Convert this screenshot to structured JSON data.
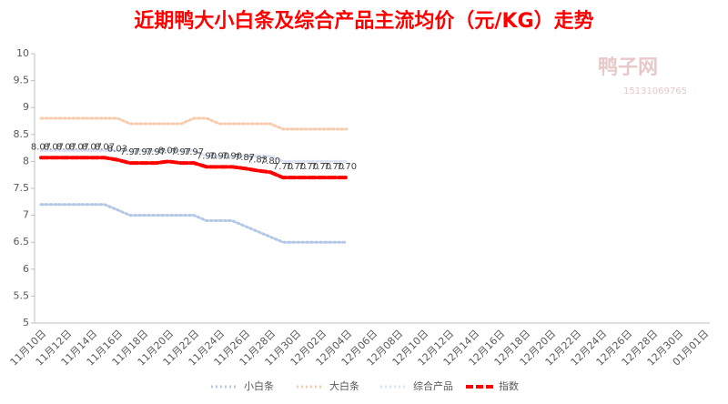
{
  "chart_data": {
    "type": "line",
    "title": "近期鸭大小白条及综合产品主流均价（元/KG）走势",
    "watermark": "鸭子网",
    "watermark_phone": "15131069765",
    "categories": [
      "11月10日",
      null,
      "11月12日",
      null,
      "11月14日",
      null,
      "11月16日",
      null,
      "11月18日",
      null,
      "11月20日",
      null,
      "11月22日",
      null,
      "11月24日",
      null,
      "11月26日",
      null,
      "11月28日",
      null,
      "11月30日",
      null,
      "12月02日",
      null,
      "12月04日",
      null,
      "12月06日",
      null,
      "12月08日",
      null,
      "12月10日",
      null,
      "12月12日",
      null,
      "12月14日",
      null,
      "12月16日",
      null,
      "12月18日",
      null,
      "12月20日",
      null,
      "12月22日",
      null,
      "12月24日",
      null,
      "12月26日",
      null,
      "12月28日",
      null,
      "12月30日",
      null,
      "01月01日"
    ],
    "series": [
      {
        "name": "小白条",
        "color": "#b4c7e7",
        "style": "dotted",
        "values": [
          7.2,
          7.2,
          7.2,
          7.2,
          7.2,
          7.2,
          7.1,
          7.0,
          7.0,
          7.0,
          7.0,
          7.0,
          7.0,
          6.9,
          6.9,
          6.9,
          6.8,
          6.7,
          6.6,
          6.5,
          6.5,
          6.5,
          6.5,
          6.5,
          6.5,
          null,
          null,
          null,
          null,
          null,
          null,
          null,
          null,
          null,
          null,
          null,
          null,
          null,
          null,
          null,
          null,
          null,
          null,
          null,
          null,
          null,
          null,
          null,
          null,
          null,
          null,
          null,
          null
        ]
      },
      {
        "name": "大白条",
        "color": "#f8cbad",
        "style": "dotted",
        "values": [
          8.8,
          8.8,
          8.8,
          8.8,
          8.8,
          8.8,
          8.8,
          8.7,
          8.7,
          8.7,
          8.7,
          8.7,
          8.8,
          8.8,
          8.7,
          8.7,
          8.7,
          8.7,
          8.7,
          8.6,
          8.6,
          8.6,
          8.6,
          8.6,
          8.6,
          null,
          null,
          null,
          null,
          null,
          null,
          null,
          null,
          null,
          null,
          null,
          null,
          null,
          null,
          null,
          null,
          null,
          null,
          null,
          null,
          null,
          null,
          null,
          null,
          null,
          null,
          null,
          null
        ]
      },
      {
        "name": "综合产品",
        "color": "#dae3f3",
        "style": "dotted",
        "values": [
          8.2,
          8.2,
          8.2,
          8.2,
          8.2,
          8.2,
          8.2,
          8.2,
          8.2,
          8.2,
          8.2,
          8.2,
          8.2,
          8.1,
          8.1,
          8.1,
          8.1,
          8.1,
          8.1,
          8.0,
          8.0,
          8.0,
          8.0,
          8.0,
          8.0,
          null,
          null,
          null,
          null,
          null,
          null,
          null,
          null,
          null,
          null,
          null,
          null,
          null,
          null,
          null,
          null,
          null,
          null,
          null,
          null,
          null,
          null,
          null,
          null,
          null,
          null,
          null,
          null
        ]
      },
      {
        "name": "指数",
        "color": "#ff0000",
        "style": "dashed",
        "values": [
          8.07,
          8.07,
          8.07,
          8.07,
          8.07,
          8.07,
          8.03,
          7.97,
          7.97,
          7.97,
          8.0,
          7.97,
          7.97,
          7.9,
          7.9,
          7.9,
          7.87,
          7.83,
          7.8,
          7.7,
          7.7,
          7.7,
          7.7,
          7.7,
          7.7,
          null,
          null,
          null,
          null,
          null,
          null,
          null,
          null,
          null,
          null,
          null,
          null,
          null,
          null,
          null,
          null,
          null,
          null,
          null,
          null,
          null,
          null,
          null,
          null,
          null,
          null,
          null,
          null
        ],
        "value_labels": [
          "8.07",
          "8.07",
          "8.07",
          "8.07",
          "8.07",
          "8.07",
          "8.03",
          "7.97",
          "7.97",
          "7.97",
          "8.00",
          "7.97",
          "7.97",
          "7.90",
          "7.90",
          "7.90",
          "7.87",
          "7.83",
          "7.80",
          "7.70",
          "7.70",
          "7.70",
          "7.70",
          "7.70",
          "7.70",
          null,
          null,
          null,
          null,
          null,
          null,
          null,
          null,
          null,
          null,
          null,
          null,
          null,
          null,
          null,
          null,
          null,
          null,
          null,
          null,
          null,
          null,
          null,
          null,
          null,
          null,
          null,
          null
        ]
      }
    ],
    "ylim": [
      5,
      10
    ],
    "yticks": [
      5,
      5.5,
      6,
      6.5,
      7,
      7.5,
      8,
      8.5,
      9,
      9.5,
      10
    ],
    "grid": false,
    "legend": "bottom"
  }
}
